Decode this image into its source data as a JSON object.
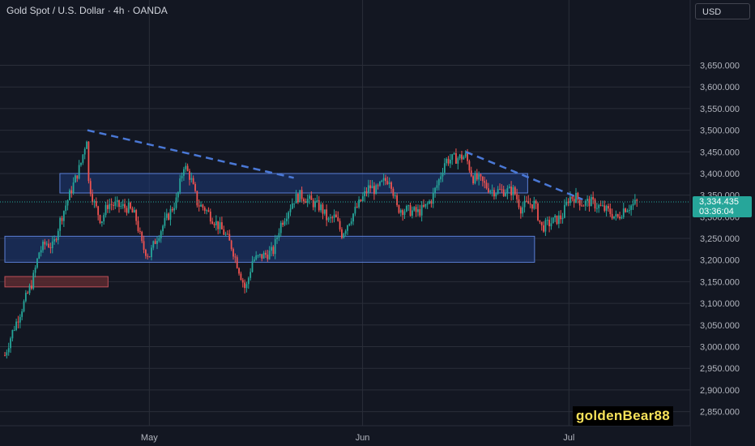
{
  "header": {
    "title": "Gold Spot / U.S. Dollar · 4h · OANDA",
    "currency": "USD"
  },
  "watermark": "goldenBear88",
  "price_badge": {
    "price": "3,334.435",
    "countdown": "03:36:04",
    "color": "#26a69a"
  },
  "colors": {
    "background": "#131722",
    "grid": "#2a2e39",
    "up": "#26a69a",
    "down": "#ef5350",
    "zone_fill": "#1e3a7a",
    "zone_border": "#5b7fd6",
    "trendline": "#4a78d6",
    "red_zone": "#5c2a30"
  },
  "chart_data": {
    "type": "candlestick",
    "title": "Gold Spot / U.S. Dollar · 4h · OANDA",
    "currency": "USD",
    "x_tick_labels": [
      "May",
      "Jun",
      "Jul"
    ],
    "y_tick_labels": [
      "2,850.000",
      "2,900.000",
      "2,950.000",
      "3,000.000",
      "3,050.000",
      "3,100.000",
      "3,150.000",
      "3,200.000",
      "3,250.000",
      "3,300.000",
      "3,350.000",
      "3,400.000",
      "3,450.000",
      "3,500.000",
      "3,550.000",
      "3,600.000",
      "3,650.000"
    ],
    "ylim": [
      2830,
      3700
    ],
    "last_price": 3334.435,
    "anchors": [
      {
        "date": "Apr 10",
        "price": 2980
      },
      {
        "date": "Apr 11",
        "price": 3030
      },
      {
        "date": "Apr 14",
        "price": 3150
      },
      {
        "date": "Apr 15",
        "price": 3220
      },
      {
        "date": "Apr 16",
        "price": 3240
      },
      {
        "date": "Apr 17",
        "price": 3230
      },
      {
        "date": "Apr 18",
        "price": 3290
      },
      {
        "date": "Apr 21",
        "price": 3420
      },
      {
        "date": "Apr 22",
        "price": 3490
      },
      {
        "date": "Apr 22",
        "price": 3390
      },
      {
        "date": "Apr 23",
        "price": 3330
      },
      {
        "date": "Apr 24",
        "price": 3290
      },
      {
        "date": "Apr 25",
        "price": 3330
      },
      {
        "date": "Apr 28",
        "price": 3320
      },
      {
        "date": "Apr 29",
        "price": 3300
      },
      {
        "date": "Apr 30",
        "price": 3230
      },
      {
        "date": "May 1",
        "price": 3210
      },
      {
        "date": "May 2",
        "price": 3250
      },
      {
        "date": "May 5",
        "price": 3340
      },
      {
        "date": "May 6",
        "price": 3420
      },
      {
        "date": "May 7",
        "price": 3390
      },
      {
        "date": "May 8",
        "price": 3330
      },
      {
        "date": "May 9",
        "price": 3320
      },
      {
        "date": "May 12",
        "price": 3260
      },
      {
        "date": "May 13",
        "price": 3230
      },
      {
        "date": "May 14",
        "price": 3180
      },
      {
        "date": "May 15",
        "price": 3130
      },
      {
        "date": "May 16",
        "price": 3200
      },
      {
        "date": "May 19",
        "price": 3220
      },
      {
        "date": "May 20",
        "price": 3280
      },
      {
        "date": "May 21",
        "price": 3310
      },
      {
        "date": "May 22",
        "price": 3340
      },
      {
        "date": "May 23",
        "price": 3350
      },
      {
        "date": "May 26",
        "price": 3320
      },
      {
        "date": "May 27",
        "price": 3290
      },
      {
        "date": "May 28",
        "price": 3300
      },
      {
        "date": "May 29",
        "price": 3260
      },
      {
        "date": "May 30",
        "price": 3290
      },
      {
        "date": "Jun 2",
        "price": 3370
      },
      {
        "date": "Jun 3",
        "price": 3360
      },
      {
        "date": "Jun 4",
        "price": 3380
      },
      {
        "date": "Jun 5",
        "price": 3390
      },
      {
        "date": "Jun 6",
        "price": 3320
      },
      {
        "date": "Jun 9",
        "price": 3310
      },
      {
        "date": "Jun 10",
        "price": 3320
      },
      {
        "date": "Jun 11",
        "price": 3340
      },
      {
        "date": "Jun 12",
        "price": 3380
      },
      {
        "date": "Jun 13",
        "price": 3430
      },
      {
        "date": "Jun 16",
        "price": 3440
      },
      {
        "date": "Jun 17",
        "price": 3390
      },
      {
        "date": "Jun 18",
        "price": 3385
      },
      {
        "date": "Jun 19",
        "price": 3370
      },
      {
        "date": "Jun 20",
        "price": 3360
      },
      {
        "date": "Jun 23",
        "price": 3360
      },
      {
        "date": "Jun 24",
        "price": 3320
      },
      {
        "date": "Jun 25",
        "price": 3330
      },
      {
        "date": "Jun 26",
        "price": 3330
      },
      {
        "date": "Jun 27",
        "price": 3275
      },
      {
        "date": "Jun 30",
        "price": 3300
      },
      {
        "date": "Jul 1",
        "price": 3345
      },
      {
        "date": "Jul 2",
        "price": 3345
      },
      {
        "date": "Jul 3",
        "price": 3330
      },
      {
        "date": "Jul 4",
        "price": 3335
      },
      {
        "date": "Jul 7",
        "price": 3310
      },
      {
        "date": "Jul 8",
        "price": 3295
      },
      {
        "date": "Jul 9",
        "price": 3320
      },
      {
        "date": "Jul 10",
        "price": 3325
      },
      {
        "date": "Jul 11",
        "price": 3334
      }
    ],
    "zones": [
      {
        "name": "upper-resistance-zone",
        "from": "Apr 18",
        "to": "Jun 25",
        "price_low": 3355,
        "price_high": 3400
      },
      {
        "name": "lower-support-zone",
        "from": "Apr 10",
        "to": "Jun 26",
        "price_low": 3195,
        "price_high": 3255
      },
      {
        "name": "red-demand-zone",
        "from": "Apr 10",
        "to": "Apr 25",
        "price_low": 3138,
        "price_high": 3162
      }
    ],
    "trendlines": [
      {
        "name": "descending-trendline-1",
        "from": {
          "date": "Apr 22",
          "price": 3500
        },
        "to": {
          "date": "May 22",
          "price": 3390
        }
      },
      {
        "name": "descending-trendline-2",
        "from": {
          "date": "Jun 16",
          "price": 3450
        },
        "to": {
          "date": "Jul 3",
          "price": 3340
        }
      }
    ]
  }
}
